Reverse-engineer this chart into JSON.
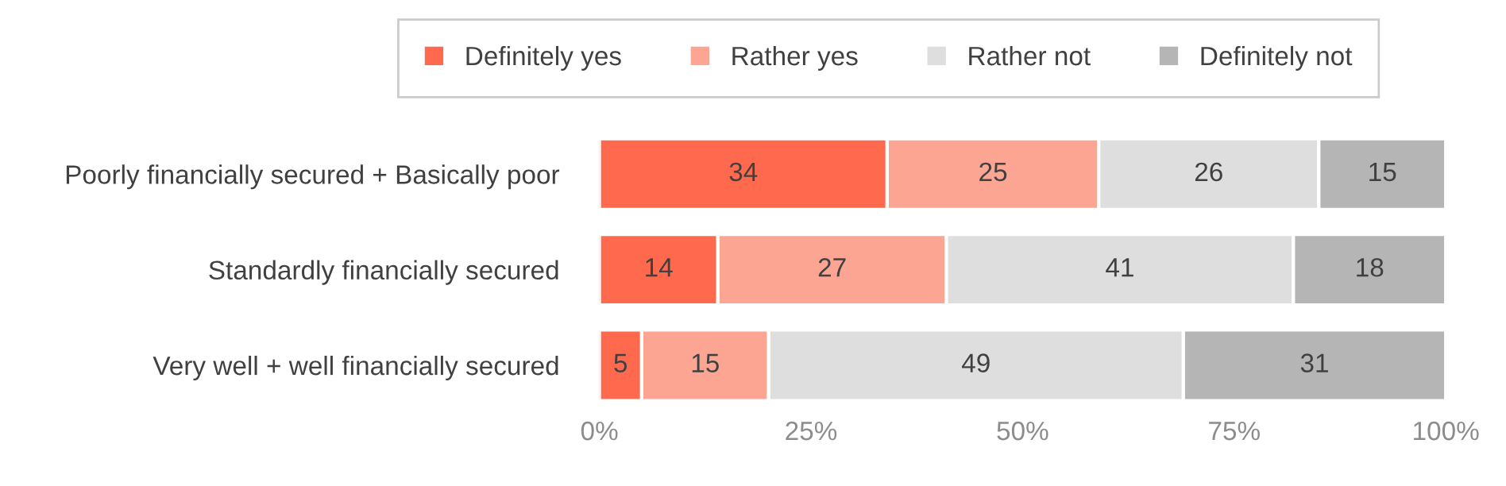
{
  "chart_data": {
    "type": "bar",
    "orientation": "horizontal",
    "stacked": true,
    "data_labels": true,
    "legend": "top",
    "grid": false,
    "categories": [
      "Poorly financially secured + Basically poor",
      "Standardly financially secured",
      "Very well + well financially secured"
    ],
    "series": [
      {
        "name": "Definitely yes",
        "color": "#ff6a4f",
        "values": [
          34,
          14,
          5
        ]
      },
      {
        "name": "Rather yes",
        "color": "#fca593",
        "values": [
          25,
          27,
          15
        ]
      },
      {
        "name": "Rather not",
        "color": "#dedede",
        "values": [
          26,
          41,
          49
        ]
      },
      {
        "name": "Definitely not",
        "color": "#b5b5b5",
        "values": [
          15,
          18,
          31
        ]
      }
    ],
    "xlim": [
      0,
      100
    ],
    "xticks": [
      {
        "value": 0,
        "label": "0%"
      },
      {
        "value": 25,
        "label": "25%"
      },
      {
        "value": 50,
        "label": "50%"
      },
      {
        "value": 75,
        "label": "75%"
      },
      {
        "value": 100,
        "label": "100%"
      }
    ]
  }
}
